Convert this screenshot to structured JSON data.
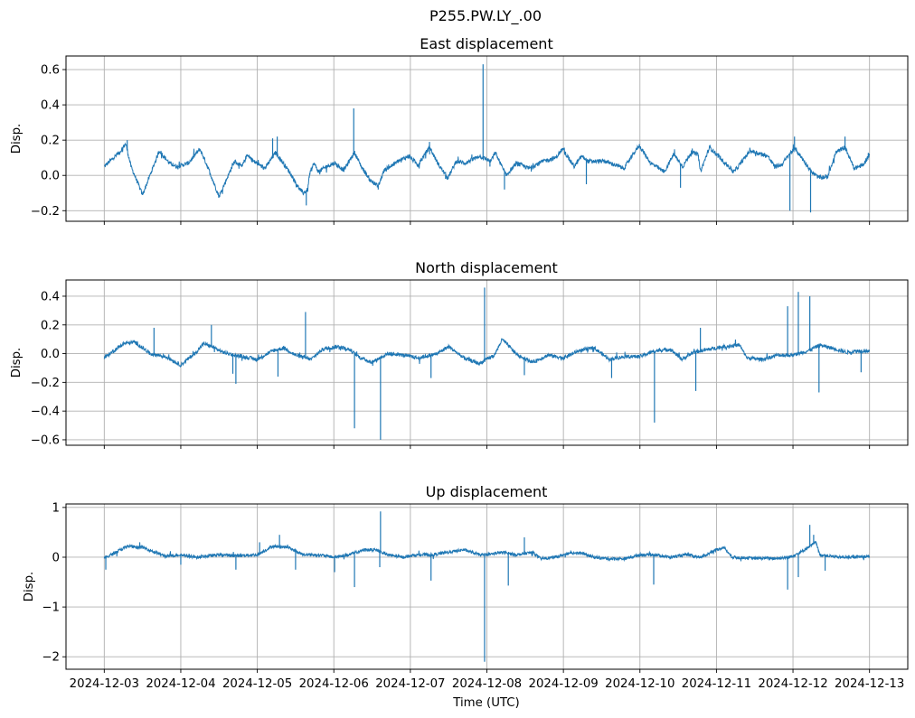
{
  "chart_data": {
    "type": "line",
    "suptitle": "P255.PW.LY_.00",
    "xlabel": "Time (UTC)",
    "x_unit": "days since 2024-12-03 00:00 UTC",
    "xlim": [
      -0.5,
      10.5
    ],
    "x_ticks": [
      0,
      1,
      2,
      3,
      4,
      5,
      6,
      7,
      8,
      9,
      10
    ],
    "x_tick_labels": [
      "2024-12-03",
      "2024-12-04",
      "2024-12-05",
      "2024-12-06",
      "2024-12-07",
      "2024-12-08",
      "2024-12-09",
      "2024-12-10",
      "2024-12-11",
      "2024-12-12",
      "2024-12-13"
    ],
    "grid": true,
    "color": "#1f77b4",
    "panels": [
      {
        "title": "East displacement",
        "ylabel": "Disp.",
        "ylim": [
          -0.26,
          0.677
        ],
        "y_ticks": [
          -0.2,
          0.0,
          0.2,
          0.4,
          0.6
        ],
        "y_tick_labels": [
          "−0.2",
          "0.0",
          "0.2",
          "0.4",
          "0.6"
        ],
        "series": [
          [
            0,
            0.05
          ],
          [
            0.12,
            0.1
          ],
          [
            0.2,
            0.13
          ],
          [
            0.28,
            0.18
          ],
          [
            0.35,
            0.05
          ],
          [
            0.5,
            -0.11
          ],
          [
            0.72,
            0.14
          ],
          [
            0.85,
            0.07
          ],
          [
            0.95,
            0.05
          ],
          [
            1.1,
            0.07
          ],
          [
            1.25,
            0.15
          ],
          [
            1.35,
            0.05
          ],
          [
            1.5,
            -0.12
          ],
          [
            1.7,
            0.08
          ],
          [
            1.8,
            0.05
          ],
          [
            1.87,
            0.12
          ],
          [
            1.95,
            0.08
          ],
          [
            2.1,
            0.04
          ],
          [
            2.24,
            0.13
          ],
          [
            2.42,
            0.02
          ],
          [
            2.54,
            -0.07
          ],
          [
            2.6,
            -0.1
          ],
          [
            2.66,
            -0.08
          ],
          [
            2.68,
            0.0
          ],
          [
            2.74,
            0.07
          ],
          [
            2.8,
            0.02
          ],
          [
            2.9,
            0.05
          ],
          [
            3.01,
            0.07
          ],
          [
            3.13,
            0.03
          ],
          [
            3.27,
            0.13
          ],
          [
            3.36,
            0.05
          ],
          [
            3.48,
            -0.03
          ],
          [
            3.58,
            -0.06
          ],
          [
            3.66,
            0.03
          ],
          [
            3.84,
            0.08
          ],
          [
            3.98,
            0.11
          ],
          [
            4.1,
            0.06
          ],
          [
            4.25,
            0.16
          ],
          [
            4.37,
            0.06
          ],
          [
            4.49,
            -0.015
          ],
          [
            4.6,
            0.08
          ],
          [
            4.72,
            0.07
          ],
          [
            4.9,
            0.11
          ],
          [
            5.05,
            0.08
          ],
          [
            5.11,
            0.13
          ],
          [
            5.25,
            0.0
          ],
          [
            5.39,
            0.07
          ],
          [
            5.55,
            0.04
          ],
          [
            5.73,
            0.08
          ],
          [
            5.9,
            0.1
          ],
          [
            5.99,
            0.15
          ],
          [
            6.14,
            0.05
          ],
          [
            6.24,
            0.11
          ],
          [
            6.32,
            0.08
          ],
          [
            6.55,
            0.08
          ],
          [
            6.79,
            0.04
          ],
          [
            6.99,
            0.17
          ],
          [
            7.14,
            0.07
          ],
          [
            7.32,
            0.02
          ],
          [
            7.44,
            0.12
          ],
          [
            7.56,
            0.05
          ],
          [
            7.67,
            0.13
          ],
          [
            7.76,
            0.12
          ],
          [
            7.79,
            0.02
          ],
          [
            7.91,
            0.16
          ],
          [
            8.09,
            0.08
          ],
          [
            8.23,
            0.02
          ],
          [
            8.44,
            0.14
          ],
          [
            8.67,
            0.11
          ],
          [
            8.76,
            0.05
          ],
          [
            8.85,
            0.06
          ],
          [
            8.97,
            0.13
          ],
          [
            9.03,
            0.15
          ],
          [
            9.18,
            0.06
          ],
          [
            9.24,
            0.02
          ],
          [
            9.33,
            -0.01
          ],
          [
            9.45,
            -0.01
          ],
          [
            9.56,
            0.13
          ],
          [
            9.68,
            0.16
          ],
          [
            9.8,
            0.04
          ],
          [
            9.92,
            0.06
          ],
          [
            10.0,
            0.12
          ]
        ],
        "spikes": [
          [
            0.3,
            0.2
          ],
          [
            2.2,
            0.21
          ],
          [
            2.26,
            0.22
          ],
          [
            2.64,
            -0.17
          ],
          [
            3.26,
            0.38
          ],
          [
            3.58,
            -0.08
          ],
          [
            4.25,
            0.19
          ],
          [
            4.46,
            -0.02
          ],
          [
            4.95,
            0.63
          ],
          [
            5.04,
            0.05
          ],
          [
            5.23,
            -0.08
          ],
          [
            6.3,
            -0.05
          ],
          [
            7.53,
            -0.07
          ],
          [
            8.96,
            -0.2
          ],
          [
            9.02,
            0.22
          ],
          [
            9.23,
            -0.21
          ],
          [
            9.68,
            0.22
          ]
        ]
      },
      {
        "title": "North displacement",
        "ylabel": "Disp.",
        "ylim": [
          -0.638,
          0.513
        ],
        "y_ticks": [
          -0.6,
          -0.4,
          -0.2,
          0.0,
          0.2,
          0.4
        ],
        "y_tick_labels": [
          "−0.6",
          "−0.4",
          "−0.2",
          "0.0",
          "0.2",
          "0.4"
        ],
        "series": [
          [
            0,
            -0.03
          ],
          [
            0.25,
            0.07
          ],
          [
            0.4,
            0.08
          ],
          [
            0.6,
            0.0
          ],
          [
            0.8,
            -0.02
          ],
          [
            1.0,
            -0.08
          ],
          [
            1.2,
            0.01
          ],
          [
            1.3,
            0.07
          ],
          [
            1.4,
            0.05
          ],
          [
            1.55,
            0.01
          ],
          [
            1.7,
            -0.01
          ],
          [
            1.9,
            -0.03
          ],
          [
            2.0,
            -0.04
          ],
          [
            2.2,
            0.02
          ],
          [
            2.35,
            0.04
          ],
          [
            2.5,
            -0.01
          ],
          [
            2.7,
            -0.04
          ],
          [
            2.85,
            0.03
          ],
          [
            3.05,
            0.05
          ],
          [
            3.2,
            0.03
          ],
          [
            3.35,
            -0.03
          ],
          [
            3.5,
            -0.06
          ],
          [
            3.7,
            0.0
          ],
          [
            3.9,
            -0.01
          ],
          [
            4.1,
            -0.03
          ],
          [
            4.35,
            0.0
          ],
          [
            4.5,
            0.05
          ],
          [
            4.7,
            -0.03
          ],
          [
            4.9,
            -0.07
          ],
          [
            5.0,
            -0.04
          ],
          [
            5.1,
            -0.01
          ],
          [
            5.2,
            0.1
          ],
          [
            5.4,
            -0.01
          ],
          [
            5.6,
            -0.06
          ],
          [
            5.8,
            -0.01
          ],
          [
            6.0,
            -0.03
          ],
          [
            6.2,
            0.02
          ],
          [
            6.4,
            0.04
          ],
          [
            6.6,
            -0.04
          ],
          [
            6.8,
            -0.02
          ],
          [
            7.0,
            -0.02
          ],
          [
            7.2,
            0.02
          ],
          [
            7.4,
            0.03
          ],
          [
            7.55,
            -0.04
          ],
          [
            7.7,
            0.01
          ],
          [
            7.9,
            0.03
          ],
          [
            8.1,
            0.05
          ],
          [
            8.3,
            0.06
          ],
          [
            8.4,
            -0.03
          ],
          [
            8.6,
            -0.04
          ],
          [
            8.8,
            -0.01
          ],
          [
            9.0,
            -0.01
          ],
          [
            9.2,
            0.02
          ],
          [
            9.35,
            0.06
          ],
          [
            9.5,
            0.04
          ],
          [
            9.7,
            0.01
          ],
          [
            9.85,
            0.02
          ],
          [
            10.0,
            0.02
          ]
        ],
        "spikes": [
          [
            0.65,
            0.18
          ],
          [
            1.4,
            0.2
          ],
          [
            1.68,
            -0.14
          ],
          [
            1.72,
            -0.21
          ],
          [
            2.27,
            -0.16
          ],
          [
            2.63,
            0.29
          ],
          [
            3.27,
            -0.52
          ],
          [
            3.61,
            -0.6
          ],
          [
            4.27,
            -0.17
          ],
          [
            4.97,
            0.46
          ],
          [
            5.49,
            -0.15
          ],
          [
            6.63,
            -0.17
          ],
          [
            7.19,
            -0.48
          ],
          [
            7.73,
            -0.26
          ],
          [
            7.79,
            0.18
          ],
          [
            8.93,
            0.33
          ],
          [
            9.07,
            0.43
          ],
          [
            9.22,
            0.4
          ],
          [
            9.34,
            -0.27
          ],
          [
            9.89,
            -0.13
          ]
        ]
      },
      {
        "title": "Up displacement",
        "ylabel": "Disp.",
        "ylim": [
          -2.25,
          1.07
        ],
        "y_ticks": [
          -2,
          -1,
          0,
          1
        ],
        "y_tick_labels": [
          "−2",
          "−1",
          "0",
          "1"
        ],
        "series": [
          [
            0,
            -0.02
          ],
          [
            0.3,
            0.22
          ],
          [
            0.5,
            0.2
          ],
          [
            0.8,
            0.02
          ],
          [
            1.0,
            0.05
          ],
          [
            1.2,
            0.0
          ],
          [
            1.5,
            0.05
          ],
          [
            1.7,
            0.03
          ],
          [
            2.0,
            0.05
          ],
          [
            2.2,
            0.22
          ],
          [
            2.4,
            0.2
          ],
          [
            2.6,
            0.05
          ],
          [
            2.8,
            0.05
          ],
          [
            3.0,
            0.0
          ],
          [
            3.2,
            0.05
          ],
          [
            3.4,
            0.15
          ],
          [
            3.55,
            0.15
          ],
          [
            3.7,
            0.05
          ],
          [
            3.9,
            0.0
          ],
          [
            4.1,
            0.05
          ],
          [
            4.3,
            0.05
          ],
          [
            4.5,
            0.1
          ],
          [
            4.7,
            0.15
          ],
          [
            4.9,
            0.05
          ],
          [
            5.0,
            0.05
          ],
          [
            5.2,
            0.1
          ],
          [
            5.4,
            0.05
          ],
          [
            5.6,
            0.1
          ],
          [
            5.7,
            -0.03
          ],
          [
            5.9,
            0.0
          ],
          [
            6.0,
            0.05
          ],
          [
            6.2,
            0.1
          ],
          [
            6.4,
            0.0
          ],
          [
            6.6,
            -0.03
          ],
          [
            6.8,
            -0.03
          ],
          [
            7.0,
            0.05
          ],
          [
            7.2,
            0.05
          ],
          [
            7.4,
            0.0
          ],
          [
            7.6,
            0.05
          ],
          [
            7.8,
            0.0
          ],
          [
            8.0,
            0.15
          ],
          [
            8.1,
            0.2
          ],
          [
            8.2,
            0.0
          ],
          [
            8.5,
            -0.02
          ],
          [
            8.8,
            -0.02
          ],
          [
            8.95,
            0.0
          ],
          [
            9.1,
            0.1
          ],
          [
            9.3,
            0.3
          ],
          [
            9.35,
            0.05
          ],
          [
            9.6,
            0.0
          ],
          [
            9.8,
            0.0
          ],
          [
            10.0,
            0.02
          ]
        ],
        "spikes": [
          [
            0.02,
            -0.25
          ],
          [
            1.0,
            -0.15
          ],
          [
            1.72,
            -0.25
          ],
          [
            2.03,
            0.3
          ],
          [
            2.29,
            0.45
          ],
          [
            2.5,
            -0.25
          ],
          [
            3.01,
            -0.3
          ],
          [
            3.27,
            -0.6
          ],
          [
            3.6,
            -0.2
          ],
          [
            3.61,
            0.92
          ],
          [
            4.27,
            -0.47
          ],
          [
            4.97,
            -2.1
          ],
          [
            5.28,
            -0.57
          ],
          [
            5.49,
            0.4
          ],
          [
            7.18,
            -0.55
          ],
          [
            8.93,
            -0.65
          ],
          [
            9.07,
            -0.4
          ],
          [
            9.22,
            0.65
          ],
          [
            9.27,
            0.45
          ],
          [
            9.42,
            -0.27
          ]
        ]
      }
    ]
  }
}
